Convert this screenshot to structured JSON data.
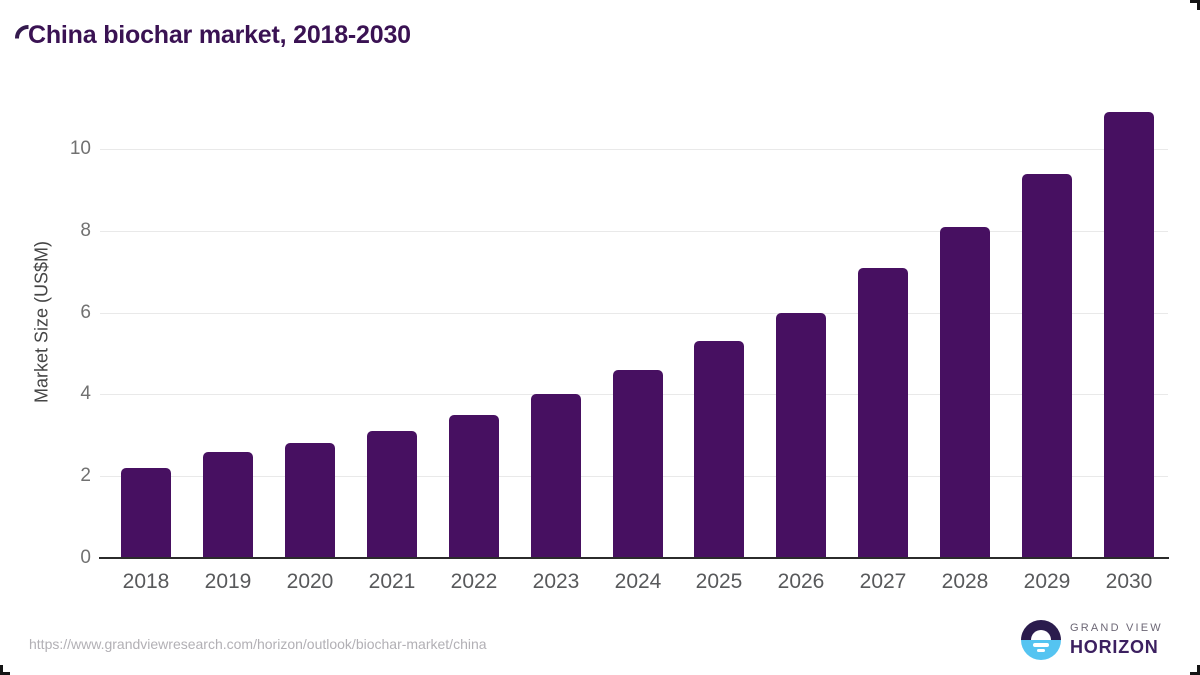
{
  "page": {
    "title": "China biochar market, 2018-2030"
  },
  "chart_data": {
    "type": "bar",
    "title": "China biochar market, 2018-2030",
    "xlabel": "",
    "ylabel": "Market Size (US$M)",
    "categories": [
      "2018",
      "2019",
      "2020",
      "2021",
      "2022",
      "2023",
      "2024",
      "2025",
      "2026",
      "2027",
      "2028",
      "2029",
      "2030"
    ],
    "values": [
      2.2,
      2.6,
      2.8,
      3.1,
      3.5,
      4.0,
      4.6,
      5.3,
      6.0,
      7.1,
      8.1,
      9.4,
      10.9
    ],
    "yticks": [
      0,
      2,
      4,
      6,
      8,
      10
    ],
    "ylim": [
      0,
      11.2
    ],
    "grid": true,
    "legend": false,
    "bar_color": "#471061"
  },
  "footer": {
    "source_url": "https://www.grandviewresearch.com/horizon/outlook/biochar-market/china",
    "logo_text_top": "GRAND VIEW",
    "logo_text_bottom": "HORIZON"
  },
  "colors": {
    "title_text": "#3a1253",
    "bar_fill": "#471061",
    "axis_line": "#2b2b2b",
    "gridline": "#e9e9e9",
    "y_tick_label": "#717171",
    "x_tick_label": "#58595b",
    "y_axis_title": "#454545",
    "url_text": "#b2b0b5",
    "logo_dark_purple": "#2b1c4d",
    "logo_light_blue": "#55c4f1",
    "logo_grand_view_text": "#6c6775",
    "logo_horizon_text": "#3c2060"
  }
}
